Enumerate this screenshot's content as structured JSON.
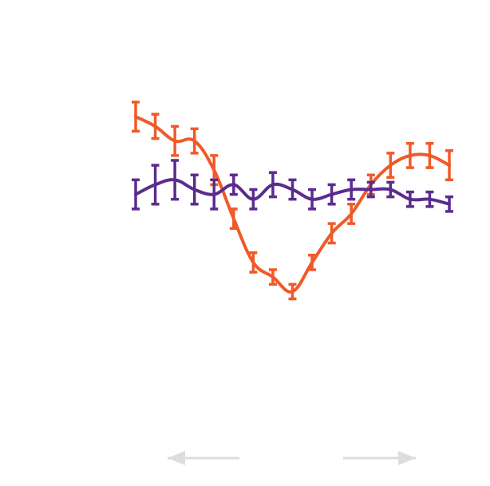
{
  "chart_data": {
    "type": "line",
    "title": "",
    "xlabel": "",
    "ylabel": "",
    "x": [
      1,
      2,
      3,
      4,
      5,
      6,
      7,
      8,
      9,
      10,
      11,
      12,
      13,
      14,
      15,
      16,
      17
    ],
    "xlim": [
      1,
      17
    ],
    "ylim": [
      0,
      100
    ],
    "grid": false,
    "legend": "none",
    "series": [
      {
        "color": "#f05a28",
        "values": [
          76,
          74,
          71,
          71,
          65,
          55,
          46,
          43,
          40,
          46,
          52,
          56,
          62,
          66,
          68,
          68,
          66
        ],
        "errors": [
          3,
          2.5,
          3,
          2.5,
          3,
          2,
          2,
          1.5,
          1.5,
          1.5,
          2,
          2,
          2,
          2.5,
          2.5,
          2.5,
          3
        ]
      },
      {
        "color": "#5b2c8f",
        "values": [
          60,
          62,
          63,
          61,
          60,
          62,
          59,
          62,
          61,
          59,
          60,
          61,
          61,
          61,
          59,
          59,
          58
        ],
        "errors": [
          3,
          4,
          4,
          3,
          3,
          2,
          2,
          2.5,
          2,
          2,
          2,
          2,
          1.5,
          1.5,
          1.5,
          1.5,
          1.5
        ]
      }
    ],
    "nav": {
      "left_arrow": "arrow-left-icon",
      "right_arrow": "arrow-right-icon",
      "arrow_color": "#dddddd"
    }
  }
}
